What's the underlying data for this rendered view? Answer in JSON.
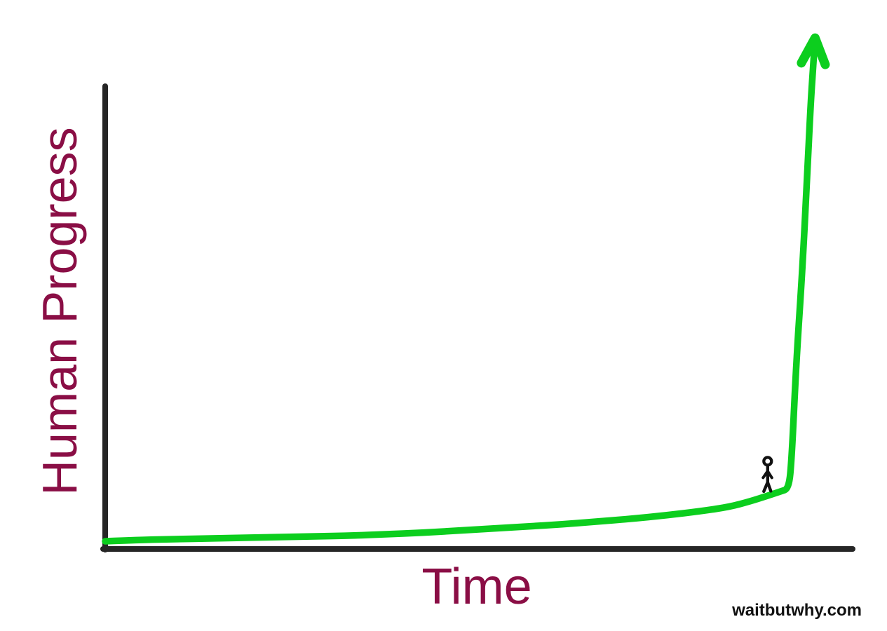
{
  "chart_data": {
    "type": "line",
    "title": "",
    "xlabel": "Time",
    "ylabel": "Human Progress",
    "xlim": [
      0,
      1
    ],
    "ylim": [
      0,
      1
    ],
    "grid": false,
    "tick_labels": "none",
    "axis_color": "#262626",
    "label_color": "#8a0e45",
    "series": [
      {
        "name": "Human Progress over Time",
        "color": "#0cce1e",
        "stroke_width": 9.5,
        "arrow_end": true,
        "points": [
          [
            0.0,
            0.015
          ],
          [
            0.0467,
            0.0177
          ],
          [
            0.0935,
            0.0191
          ],
          [
            0.1402,
            0.0205
          ],
          [
            0.1869,
            0.0218
          ],
          [
            0.2336,
            0.0232
          ],
          [
            0.2804,
            0.0246
          ],
          [
            0.3271,
            0.0259
          ],
          [
            0.3738,
            0.0286
          ],
          [
            0.4206,
            0.0314
          ],
          [
            0.4673,
            0.0355
          ],
          [
            0.514,
            0.0396
          ],
          [
            0.5607,
            0.0437
          ],
          [
            0.6075,
            0.0477
          ],
          [
            0.6542,
            0.0532
          ],
          [
            0.7009,
            0.0587
          ],
          [
            0.7477,
            0.0655
          ],
          [
            0.7944,
            0.0737
          ],
          [
            0.8318,
            0.0819
          ],
          [
            0.8598,
            0.0928
          ],
          [
            0.8832,
            0.1037
          ],
          [
            0.9,
            0.1119
          ],
          [
            0.9112,
            0.1173
          ],
          [
            0.915,
            0.1746
          ],
          [
            0.9215,
            0.3725
          ],
          [
            0.929,
            0.5362
          ],
          [
            0.9355,
            0.7203
          ],
          [
            0.9402,
            0.8636
          ],
          [
            0.9439,
            0.9454
          ],
          [
            0.9458,
            0.9863
          ]
        ]
      }
    ],
    "annotations": [
      {
        "type": "stick-figure",
        "description": "tiny person standing on the curve just before it shoots upward",
        "x": 0.883,
        "y": 0.112,
        "color": "#111111"
      }
    ]
  },
  "watermark": {
    "text": "waitbutwhy.com",
    "color": "#111111"
  }
}
